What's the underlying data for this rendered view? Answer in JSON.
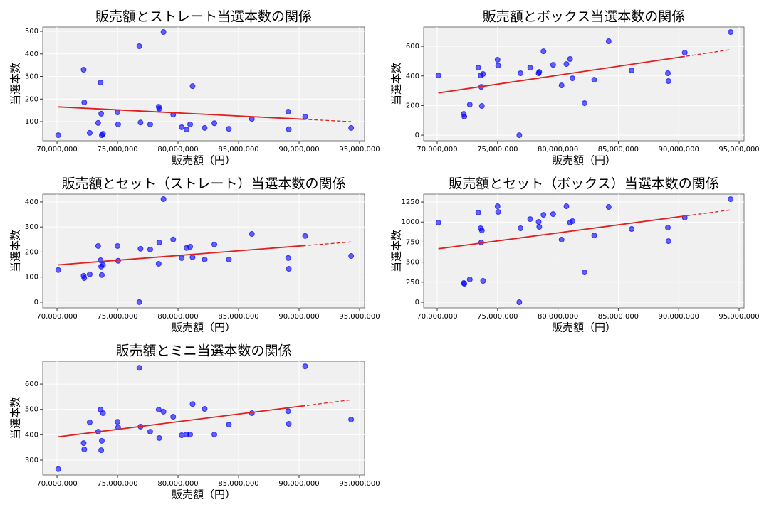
{
  "chart_data": [
    {
      "type": "scatter",
      "title": "販売額とストレート当選本数の関係",
      "xlabel": "販売額（円）",
      "ylabel": "当選本数",
      "color": "#0000ff",
      "trend_color": "#e02020",
      "grid": true,
      "x": [
        70100000,
        72200000,
        72250000,
        72700000,
        73400000,
        73600000,
        73650000,
        73700000,
        73800000,
        75000000,
        75050000,
        76800000,
        76900000,
        77700000,
        78400000,
        78450000,
        78800000,
        79600000,
        80300000,
        80700000,
        81000000,
        81200000,
        82200000,
        83000000,
        84200000,
        86100000,
        89100000,
        89150000,
        90500000,
        94300000
      ],
      "values": [
        40,
        330,
        185,
        50,
        94,
        273,
        135,
        40,
        46,
        141,
        88,
        434,
        96,
        88,
        166,
        157,
        497,
        131,
        75,
        65,
        88,
        257,
        72,
        93,
        68,
        112,
        144,
        66,
        122,
        72
      ],
      "xlim": [
        68820000,
        95410000
      ],
      "ylim": [
        15,
        519
      ],
      "xticks": [
        {
          "value": 70000000,
          "label": "70,000,000"
        },
        {
          "value": 75000000,
          "label": "75,000,000"
        },
        {
          "value": 80000000,
          "label": "80,000,000"
        },
        {
          "value": 85000000,
          "label": "85,000,000"
        },
        {
          "value": 90000000,
          "label": "90,000,000"
        },
        {
          "value": 95000000,
          "label": "95,000,000"
        }
      ],
      "yticks": [
        100,
        200,
        300,
        400,
        500
      ]
    },
    {
      "type": "scatter",
      "title": "販売額とボックス当選本数の関係",
      "xlabel": "販売額（円）",
      "ylabel": "当選本数",
      "color": "#0000ff",
      "trend_color": "#e02020",
      "grid": true,
      "x": [
        70100000,
        72200000,
        72250000,
        72700000,
        73400000,
        73600000,
        73650000,
        73700000,
        73800000,
        75000000,
        75050000,
        76800000,
        76900000,
        77700000,
        78400000,
        78450000,
        78800000,
        79600000,
        80300000,
        80700000,
        81000000,
        81200000,
        82200000,
        83000000,
        84200000,
        86100000,
        89100000,
        89150000,
        90500000,
        94300000
      ],
      "values": [
        403,
        144,
        125,
        206,
        456,
        403,
        326,
        197,
        413,
        509,
        470,
        0,
        418,
        456,
        418,
        427,
        566,
        475,
        336,
        480,
        514,
        384,
        216,
        374,
        634,
        437,
        418,
        365,
        557,
        696
      ],
      "xlim": [
        68880000,
        95410000
      ],
      "ylim": [
        -38,
        730
      ],
      "xticks": [
        {
          "value": 70000000,
          "label": "70,000,000"
        },
        {
          "value": 75000000,
          "label": "75,000,000"
        },
        {
          "value": 80000000,
          "label": "80,000,000"
        },
        {
          "value": 85000000,
          "label": "85,000,000"
        },
        {
          "value": 90000000,
          "label": "90,000,000"
        },
        {
          "value": 95000000,
          "label": "95,000,000"
        }
      ],
      "yticks": [
        0,
        200,
        400,
        600
      ]
    },
    {
      "type": "scatter",
      "title": "販売額とセット（ストレート）当選本数の関係",
      "xlabel": "販売額（円）",
      "ylabel": "当選本数",
      "color": "#0000ff",
      "trend_color": "#e02020",
      "grid": true,
      "x": [
        70100000,
        72200000,
        72250000,
        72700000,
        73400000,
        73600000,
        73650000,
        73700000,
        73800000,
        75000000,
        75050000,
        76800000,
        76900000,
        77700000,
        78400000,
        78450000,
        78800000,
        79600000,
        80300000,
        80700000,
        81000000,
        81200000,
        82200000,
        83000000,
        84200000,
        86100000,
        89100000,
        89150000,
        90500000,
        94300000
      ],
      "values": [
        128,
        105,
        96,
        111,
        224,
        167,
        142,
        108,
        148,
        224,
        165,
        0,
        213,
        210,
        153,
        238,
        411,
        250,
        176,
        216,
        221,
        179,
        170,
        230,
        170,
        272,
        176,
        133,
        264,
        184
      ],
      "xlim": [
        68820000,
        95410000
      ],
      "ylim": [
        -23,
        431
      ],
      "xticks": [
        {
          "value": 70000000,
          "label": "70,000,000"
        },
        {
          "value": 75000000,
          "label": "75,000,000"
        },
        {
          "value": 80000000,
          "label": "80,000,000"
        },
        {
          "value": 85000000,
          "label": "85,000,000"
        },
        {
          "value": 90000000,
          "label": "90,000,000"
        },
        {
          "value": 95000000,
          "label": "95,000,000"
        }
      ],
      "yticks": [
        0,
        100,
        200,
        300,
        400
      ]
    },
    {
      "type": "scatter",
      "title": "販売額とセット（ボックス）当選本数の関係",
      "xlabel": "販売額（円）",
      "ylabel": "当選本数",
      "color": "#0000ff",
      "trend_color": "#e02020",
      "grid": true,
      "x": [
        70100000,
        72200000,
        72250000,
        72700000,
        73400000,
        73600000,
        73650000,
        73700000,
        73800000,
        75000000,
        75050000,
        76800000,
        76900000,
        77700000,
        78400000,
        78450000,
        78800000,
        79600000,
        80300000,
        80700000,
        81000000,
        81200000,
        82200000,
        83000000,
        84200000,
        86100000,
        89100000,
        89150000,
        90500000,
        94300000
      ],
      "values": [
        993,
        239,
        230,
        284,
        1117,
        922,
        745,
        895,
        266,
        1197,
        1126,
        0,
        922,
        1037,
        1002,
        940,
        1090,
        1099,
        780,
        1197,
        993,
        1011,
        372,
        833,
        1188,
        913,
        931,
        762,
        1055,
        1285
      ],
      "xlim": [
        68880000,
        95410000
      ],
      "ylim": [
        -71,
        1348
      ],
      "xticks": [
        {
          "value": 70000000,
          "label": "70,000,000"
        },
        {
          "value": 75000000,
          "label": "75,000,000"
        },
        {
          "value": 80000000,
          "label": "80,000,000"
        },
        {
          "value": 85000000,
          "label": "85,000,000"
        },
        {
          "value": 90000000,
          "label": "90,000,000"
        },
        {
          "value": 95000000,
          "label": "95,000,000"
        }
      ],
      "yticks": [
        0,
        250,
        500,
        750,
        1000,
        1250
      ]
    },
    {
      "type": "scatter",
      "title": "販売額とミニ当選本数の関係",
      "xlabel": "販売額（円）",
      "ylabel": "当選本数",
      "color": "#0000ff",
      "trend_color": "#e02020",
      "grid": true,
      "x": [
        70100000,
        72200000,
        72250000,
        72700000,
        73400000,
        73600000,
        73650000,
        73700000,
        73800000,
        75000000,
        75050000,
        76800000,
        76900000,
        77700000,
        78400000,
        78450000,
        78800000,
        79600000,
        80300000,
        80700000,
        81000000,
        81200000,
        82200000,
        83000000,
        84200000,
        86100000,
        89100000,
        89150000,
        90500000,
        94300000
      ],
      "values": [
        264,
        367,
        342,
        449,
        412,
        499,
        339,
        376,
        485,
        451,
        429,
        664,
        432,
        412,
        499,
        387,
        491,
        471,
        398,
        401,
        401,
        521,
        502,
        401,
        440,
        485,
        493,
        443,
        670,
        460
      ],
      "xlim": [
        68820000,
        95410000
      ],
      "ylim": [
        241,
        690
      ],
      "xticks": [
        {
          "value": 70000000,
          "label": "70,000,000"
        },
        {
          "value": 75000000,
          "label": "75,000,000"
        },
        {
          "value": 80000000,
          "label": "80,000,000"
        },
        {
          "value": 85000000,
          "label": "85,000,000"
        },
        {
          "value": 90000000,
          "label": "90,000,000"
        },
        {
          "value": 95000000,
          "label": "95,000,000"
        }
      ],
      "yticks": [
        300,
        400,
        500,
        600
      ]
    }
  ]
}
